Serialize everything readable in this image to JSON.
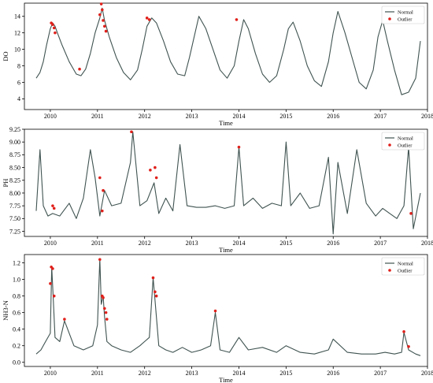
{
  "colors": {
    "normal": "#3f5350",
    "outlier": "#e0201b",
    "axis": "#000000"
  },
  "chart_data": [
    {
      "type": "line",
      "xlabel": "Time",
      "ylabel": "DO",
      "xlim": [
        2009.45,
        2018.0
      ],
      "ylim": [
        2.7,
        15.6
      ],
      "yticks": [
        4,
        6,
        8,
        10,
        12,
        14
      ],
      "xticks": [
        2010,
        2011,
        2012,
        2013,
        2014,
        2015,
        2016,
        2017,
        2018
      ],
      "legend": {
        "position": "top-right",
        "entries": [
          "Normal",
          "Outlier"
        ]
      },
      "series": [
        {
          "name": "Normal",
          "x": [
            2009.7,
            2009.78,
            2009.85,
            2009.92,
            2010.0,
            2010.05,
            2010.1,
            2010.15,
            2010.25,
            2010.4,
            2010.55,
            2010.65,
            2010.75,
            2010.85,
            2010.95,
            2011.05,
            2011.1,
            2011.15,
            2011.25,
            2011.4,
            2011.55,
            2011.7,
            2011.85,
            2011.95,
            2012.05,
            2012.15,
            2012.25,
            2012.4,
            2012.55,
            2012.7,
            2012.85,
            2012.95,
            2013.05,
            2013.15,
            2013.3,
            2013.45,
            2013.6,
            2013.75,
            2013.9,
            2014.0,
            2014.1,
            2014.2,
            2014.35,
            2014.5,
            2014.65,
            2014.8,
            2014.95,
            2015.05,
            2015.15,
            2015.3,
            2015.45,
            2015.6,
            2015.75,
            2015.9,
            2016.0,
            2016.1,
            2016.25,
            2016.4,
            2016.55,
            2016.7,
            2016.85,
            2016.95,
            2017.05,
            2017.15,
            2017.3,
            2017.45,
            2017.6,
            2017.75,
            2017.85
          ],
          "y": [
            6.5,
            7.2,
            8.5,
            10.5,
            12.5,
            13.2,
            12.8,
            12.0,
            10.5,
            8.5,
            7.0,
            6.8,
            7.6,
            9.5,
            12.0,
            13.8,
            15.0,
            13.5,
            11.5,
            9.0,
            7.2,
            6.3,
            7.5,
            10.0,
            12.8,
            13.8,
            13.2,
            11.0,
            8.5,
            7.0,
            6.8,
            9.0,
            11.5,
            14.0,
            12.5,
            10.0,
            7.5,
            6.5,
            8.0,
            11.0,
            13.6,
            12.5,
            9.5,
            7.0,
            6.0,
            6.8,
            10.0,
            12.5,
            13.3,
            11.0,
            8.0,
            6.2,
            5.5,
            8.5,
            12.0,
            14.6,
            12.0,
            9.0,
            6.0,
            5.2,
            7.5,
            11.5,
            13.5,
            11.0,
            7.5,
            4.5,
            4.8,
            6.5,
            11.0
          ]
        },
        {
          "name": "Outlier",
          "x": [
            2010.02,
            2010.05,
            2010.08,
            2010.1,
            2010.62,
            2011.05,
            2011.08,
            2011.1,
            2011.12,
            2011.15,
            2011.18,
            2012.05,
            2012.1,
            2013.95
          ],
          "y": [
            13.2,
            13.0,
            12.6,
            12.0,
            7.6,
            14.2,
            15.5,
            14.8,
            13.5,
            12.8,
            12.2,
            13.8,
            13.6,
            13.6
          ]
        }
      ]
    },
    {
      "type": "line",
      "xlabel": "Time",
      "ylabel": "PH",
      "xlim": [
        2009.45,
        2018.0
      ],
      "ylim": [
        7.15,
        9.25
      ],
      "yticks": [
        "7.25",
        "7.50",
        "7.75",
        "8.00",
        "8.25",
        "8.50",
        "8.75",
        "9.00",
        "9.25"
      ],
      "xticks": [
        2010,
        2011,
        2012,
        2013,
        2014,
        2015,
        2016,
        2017,
        2018
      ],
      "legend": {
        "position": "top-right",
        "entries": [
          "Normal",
          "Outlier"
        ]
      },
      "series": [
        {
          "name": "Normal",
          "x": [
            2009.7,
            2009.78,
            2009.85,
            2009.95,
            2010.05,
            2010.2,
            2010.4,
            2010.55,
            2010.7,
            2010.85,
            2010.95,
            2011.05,
            2011.15,
            2011.3,
            2011.5,
            2011.7,
            2011.75,
            2011.9,
            2012.05,
            2012.2,
            2012.3,
            2012.45,
            2012.6,
            2012.75,
            2012.9,
            2013.1,
            2013.3,
            2013.5,
            2013.7,
            2013.9,
            2014.0,
            2014.1,
            2014.3,
            2014.5,
            2014.7,
            2014.9,
            2015.0,
            2015.1,
            2015.3,
            2015.5,
            2015.7,
            2015.9,
            2016.0,
            2016.1,
            2016.3,
            2016.5,
            2016.7,
            2016.9,
            2017.05,
            2017.2,
            2017.35,
            2017.5,
            2017.6,
            2017.7,
            2017.85
          ],
          "y": [
            7.65,
            8.85,
            7.75,
            7.55,
            7.6,
            7.55,
            7.8,
            7.5,
            7.9,
            8.85,
            8.3,
            7.55,
            8.05,
            7.75,
            7.8,
            8.6,
            9.2,
            7.75,
            7.85,
            8.2,
            7.6,
            7.9,
            7.65,
            8.95,
            7.75,
            7.72,
            7.72,
            7.75,
            7.7,
            7.75,
            8.9,
            7.75,
            7.9,
            7.7,
            7.8,
            7.75,
            9.0,
            7.75,
            8.0,
            7.7,
            7.75,
            8.7,
            7.2,
            8.6,
            7.6,
            8.85,
            7.8,
            7.55,
            7.7,
            7.6,
            7.5,
            7.75,
            8.9,
            7.3,
            8.0
          ]
        },
        {
          "name": "Outlier",
          "x": [
            2010.05,
            2010.08,
            2011.05,
            2011.1,
            2011.12,
            2011.72,
            2012.12,
            2012.22,
            2012.25,
            2014.0,
            2017.6,
            2017.65
          ],
          "y": [
            7.75,
            7.7,
            8.3,
            7.65,
            8.05,
            9.2,
            8.45,
            8.5,
            8.3,
            8.9,
            8.9,
            7.6
          ]
        }
      ]
    },
    {
      "type": "line",
      "xlabel": "Time",
      "ylabel": "NH3-N",
      "xlim": [
        2009.45,
        2018.0
      ],
      "ylim": [
        -0.05,
        1.3
      ],
      "yticks": [
        "0.0",
        "0.2",
        "0.4",
        "0.6",
        "0.8",
        "1.0",
        "1.2"
      ],
      "xticks": [
        2010,
        2011,
        2012,
        2013,
        2014,
        2015,
        2016,
        2017,
        2018
      ],
      "legend": {
        "position": "top-right",
        "entries": [
          "Normal",
          "Outlier"
        ]
      },
      "series": [
        {
          "name": "Normal",
          "x": [
            2009.7,
            2009.8,
            2009.9,
            2010.0,
            2010.03,
            2010.06,
            2010.1,
            2010.2,
            2010.3,
            2010.5,
            2010.7,
            2010.9,
            2011.0,
            2011.05,
            2011.08,
            2011.12,
            2011.15,
            2011.2,
            2011.3,
            2011.5,
            2011.7,
            2011.9,
            2012.0,
            2012.1,
            2012.18,
            2012.22,
            2012.3,
            2012.45,
            2012.6,
            2012.8,
            2013.0,
            2013.2,
            2013.4,
            2013.5,
            2013.6,
            2013.8,
            2014.0,
            2014.2,
            2014.5,
            2014.8,
            2015.0,
            2015.3,
            2015.6,
            2015.9,
            2016.0,
            2016.3,
            2016.6,
            2016.9,
            2017.1,
            2017.3,
            2017.45,
            2017.5,
            2017.6,
            2017.75,
            2017.85
          ],
          "y": [
            0.1,
            0.15,
            0.25,
            0.35,
            1.15,
            0.8,
            0.3,
            0.25,
            0.5,
            0.2,
            0.15,
            0.2,
            0.45,
            1.25,
            0.7,
            0.8,
            0.55,
            0.25,
            0.2,
            0.15,
            0.12,
            0.2,
            0.25,
            0.3,
            1.02,
            0.75,
            0.2,
            0.15,
            0.12,
            0.18,
            0.12,
            0.15,
            0.2,
            0.6,
            0.15,
            0.12,
            0.3,
            0.15,
            0.18,
            0.12,
            0.2,
            0.12,
            0.1,
            0.15,
            0.28,
            0.12,
            0.1,
            0.1,
            0.12,
            0.1,
            0.12,
            0.36,
            0.15,
            0.1,
            0.08
          ]
        },
        {
          "name": "Outlier",
          "x": [
            2010.0,
            2010.02,
            2010.05,
            2010.08,
            2010.3,
            2011.05,
            2011.1,
            2011.12,
            2011.15,
            2011.18,
            2011.2,
            2012.18,
            2012.22,
            2012.25,
            2013.5,
            2017.5,
            2017.6
          ],
          "y": [
            0.95,
            1.15,
            1.13,
            0.8,
            0.52,
            1.24,
            0.8,
            0.78,
            0.65,
            0.6,
            0.52,
            1.02,
            0.85,
            0.8,
            0.62,
            0.37,
            0.19
          ]
        }
      ]
    }
  ]
}
